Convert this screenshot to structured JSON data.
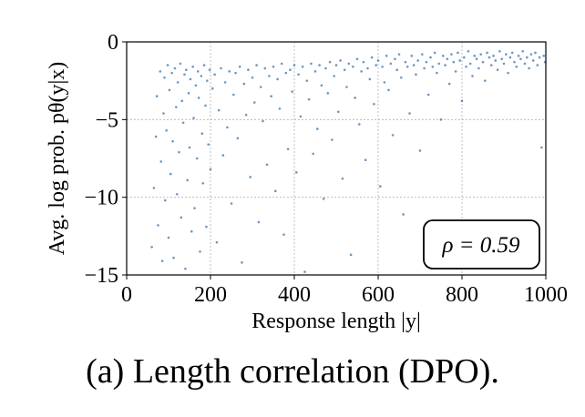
{
  "caption": "(a) Length correlation (DPO).",
  "chart_data": {
    "type": "scatter",
    "title": "",
    "xlabel": "Response length |y|",
    "ylabel": "Avg. log prob. pθ(y|x)",
    "xlim": [
      0,
      1000
    ],
    "ylim": [
      -15,
      0
    ],
    "xticks": [
      "0",
      "200",
      "400",
      "600",
      "800",
      "1000"
    ],
    "yticks": [
      "0",
      "−5",
      "−10",
      "−15"
    ],
    "grid": true,
    "legend": "none",
    "annotation": "ρ = 0.59",
    "annotation_placement": "bottom-right",
    "series": [
      {
        "color": "#3b75af",
        "points": [
          [
            60,
            -13.2
          ],
          [
            65,
            -9.4
          ],
          [
            70,
            -6.1
          ],
          [
            72,
            -3.5
          ],
          [
            75,
            -11.8
          ],
          [
            80,
            -1.9
          ],
          [
            82,
            -7.7
          ],
          [
            85,
            -14.1
          ],
          [
            88,
            -4.6
          ],
          [
            90,
            -2.3
          ],
          [
            92,
            -10.2
          ],
          [
            95,
            -5.7
          ],
          [
            98,
            -1.5
          ],
          [
            100,
            -12.6
          ],
          [
            102,
            -3.1
          ],
          [
            105,
            -8.5
          ],
          [
            108,
            -2.0
          ],
          [
            110,
            -6.4
          ],
          [
            112,
            -13.9
          ],
          [
            115,
            -1.7
          ],
          [
            118,
            -4.2
          ],
          [
            120,
            -9.8
          ],
          [
            122,
            -2.6
          ],
          [
            125,
            -7.1
          ],
          [
            128,
            -1.4
          ],
          [
            130,
            -11.3
          ],
          [
            132,
            -3.8
          ],
          [
            135,
            -5.2
          ],
          [
            138,
            -2.1
          ],
          [
            140,
            -14.6
          ],
          [
            142,
            -1.8
          ],
          [
            145,
            -8.9
          ],
          [
            148,
            -3.3
          ],
          [
            150,
            -6.8
          ],
          [
            152,
            -2.4
          ],
          [
            155,
            -12.2
          ],
          [
            158,
            -1.6
          ],
          [
            160,
            -4.9
          ],
          [
            162,
            -10.7
          ],
          [
            165,
            -2.8
          ],
          [
            168,
            -7.5
          ],
          [
            170,
            -1.9
          ],
          [
            172,
            -3.6
          ],
          [
            175,
            -13.5
          ],
          [
            178,
            -2.2
          ],
          [
            180,
            -5.9
          ],
          [
            182,
            -9.1
          ],
          [
            185,
            -1.5
          ],
          [
            188,
            -4.1
          ],
          [
            190,
            -11.9
          ],
          [
            192,
            -2.5
          ],
          [
            195,
            -6.6
          ],
          [
            198,
            -1.8
          ],
          [
            200,
            -8.2
          ],
          [
            205,
            -3.0
          ],
          [
            210,
            -2.1
          ],
          [
            215,
            -12.9
          ],
          [
            220,
            -4.4
          ],
          [
            225,
            -1.7
          ],
          [
            230,
            -7.3
          ],
          [
            235,
            -2.6
          ],
          [
            240,
            -5.5
          ],
          [
            245,
            -1.9
          ],
          [
            250,
            -10.4
          ],
          [
            255,
            -3.4
          ],
          [
            260,
            -2.0
          ],
          [
            265,
            -6.2
          ],
          [
            270,
            -1.6
          ],
          [
            275,
            -14.2
          ],
          [
            280,
            -2.7
          ],
          [
            285,
            -4.7
          ],
          [
            290,
            -1.8
          ],
          [
            295,
            -8.7
          ],
          [
            300,
            -2.3
          ],
          [
            305,
            -3.9
          ],
          [
            310,
            -1.5
          ],
          [
            315,
            -11.6
          ],
          [
            320,
            -2.9
          ],
          [
            325,
            -5.1
          ],
          [
            330,
            -1.7
          ],
          [
            335,
            -7.9
          ],
          [
            340,
            -2.2
          ],
          [
            345,
            -3.5
          ],
          [
            350,
            -1.6
          ],
          [
            355,
            -9.6
          ],
          [
            360,
            -2.4
          ],
          [
            365,
            -4.3
          ],
          [
            370,
            -1.4
          ],
          [
            375,
            -12.4
          ],
          [
            380,
            -2.0
          ],
          [
            385,
            -6.9
          ],
          [
            390,
            -1.8
          ],
          [
            395,
            -3.2
          ],
          [
            400,
            -1.5
          ],
          [
            405,
            -8.4
          ],
          [
            410,
            -2.1
          ],
          [
            415,
            -4.8
          ],
          [
            420,
            -1.6
          ],
          [
            425,
            -14.8
          ],
          [
            430,
            -2.5
          ],
          [
            435,
            -3.7
          ],
          [
            440,
            -1.4
          ],
          [
            445,
            -7.2
          ],
          [
            450,
            -1.9
          ],
          [
            455,
            -5.6
          ],
          [
            460,
            -1.5
          ],
          [
            465,
            -2.8
          ],
          [
            470,
            -10.1
          ],
          [
            475,
            -1.7
          ],
          [
            480,
            -3.3
          ],
          [
            485,
            -1.3
          ],
          [
            490,
            -6.3
          ],
          [
            495,
            -2.2
          ],
          [
            500,
            -1.5
          ],
          [
            505,
            -4.5
          ],
          [
            510,
            -1.2
          ],
          [
            515,
            -8.8
          ],
          [
            520,
            -1.8
          ],
          [
            525,
            -2.9
          ],
          [
            530,
            -1.4
          ],
          [
            535,
            -13.7
          ],
          [
            540,
            -1.6
          ],
          [
            545,
            -3.6
          ],
          [
            550,
            -1.1
          ],
          [
            555,
            -5.3
          ],
          [
            560,
            -1.9
          ],
          [
            565,
            -1.3
          ],
          [
            570,
            -7.6
          ],
          [
            575,
            -1.7
          ],
          [
            580,
            -2.4
          ],
          [
            585,
            -1.0
          ],
          [
            590,
            -4.0
          ],
          [
            595,
            -1.5
          ],
          [
            600,
            -1.2
          ],
          [
            605,
            -9.3
          ],
          [
            610,
            -1.6
          ],
          [
            615,
            -2.6
          ],
          [
            620,
            -0.9
          ],
          [
            625,
            -3.1
          ],
          [
            630,
            -1.4
          ],
          [
            635,
            -6.0
          ],
          [
            640,
            -1.1
          ],
          [
            645,
            -1.8
          ],
          [
            650,
            -0.8
          ],
          [
            655,
            -2.3
          ],
          [
            660,
            -11.1
          ],
          [
            665,
            -1.3
          ],
          [
            670,
            -1.6
          ],
          [
            675,
            -4.6
          ],
          [
            680,
            -0.9
          ],
          [
            685,
            -1.5
          ],
          [
            690,
            -2.1
          ],
          [
            695,
            -1.2
          ],
          [
            700,
            -7.0
          ],
          [
            705,
            -0.8
          ],
          [
            710,
            -1.7
          ],
          [
            715,
            -1.3
          ],
          [
            720,
            -3.4
          ],
          [
            725,
            -1.0
          ],
          [
            730,
            -1.6
          ],
          [
            735,
            -0.7
          ],
          [
            740,
            -2.0
          ],
          [
            745,
            -1.4
          ],
          [
            750,
            -5.0
          ],
          [
            755,
            -0.9
          ],
          [
            760,
            -1.5
          ],
          [
            765,
            -1.1
          ],
          [
            770,
            -2.7
          ],
          [
            775,
            -0.8
          ],
          [
            780,
            -1.3
          ],
          [
            785,
            -1.9
          ],
          [
            790,
            -0.7
          ],
          [
            795,
            -1.2
          ],
          [
            800,
            -3.8
          ],
          [
            805,
            -1.0
          ],
          [
            810,
            -1.6
          ],
          [
            815,
            -0.6
          ],
          [
            820,
            -1.4
          ],
          [
            825,
            -2.2
          ],
          [
            830,
            -0.9
          ],
          [
            835,
            -1.1
          ],
          [
            840,
            -1.7
          ],
          [
            845,
            -0.8
          ],
          [
            850,
            -1.3
          ],
          [
            855,
            -2.5
          ],
          [
            860,
            -0.7
          ],
          [
            865,
            -1.0
          ],
          [
            870,
            -1.5
          ],
          [
            875,
            -0.9
          ],
          [
            880,
            -1.2
          ],
          [
            885,
            -1.8
          ],
          [
            890,
            -0.6
          ],
          [
            895,
            -1.1
          ],
          [
            900,
            -1.4
          ],
          [
            905,
            -0.8
          ],
          [
            910,
            -2.0
          ],
          [
            915,
            -1.0
          ],
          [
            920,
            -0.7
          ],
          [
            925,
            -1.3
          ],
          [
            930,
            -1.6
          ],
          [
            935,
            -0.9
          ],
          [
            940,
            -1.1
          ],
          [
            945,
            -0.6
          ],
          [
            950,
            -1.4
          ],
          [
            955,
            -1.0
          ],
          [
            960,
            -1.7
          ],
          [
            965,
            -0.8
          ],
          [
            970,
            -1.2
          ],
          [
            975,
            -0.7
          ],
          [
            980,
            -1.5
          ],
          [
            985,
            -1.0
          ],
          [
            990,
            -6.8
          ],
          [
            995,
            -0.9
          ],
          [
            998,
            -1.3
          ]
        ]
      }
    ]
  }
}
